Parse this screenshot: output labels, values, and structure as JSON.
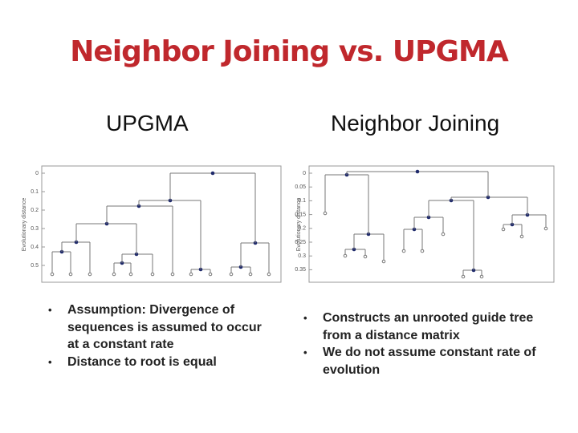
{
  "title": "Neighbor Joining vs. UPGMA",
  "panels": [
    {
      "heading": "UPGMA",
      "axis_label": "Evolutionary distance",
      "ticks": [
        "0",
        "0.1",
        "0.2",
        "0.3",
        "0.4",
        "0.5"
      ],
      "bullets": [
        "Assumption: Divergence of sequences is assumed to occur at a constant rate",
        "Distance to root is equal"
      ]
    },
    {
      "heading": "Neighbor Joining",
      "axis_label": "Evolutionary distance",
      "ticks": [
        "0",
        "0.05",
        "0.1",
        "0.15",
        "0.2",
        "0.25",
        "0.3",
        "0.35"
      ],
      "bullets": [
        "Constructs an unrooted guide tree from a distance matrix",
        "We do not assume constant rate of evolution"
      ]
    }
  ]
}
